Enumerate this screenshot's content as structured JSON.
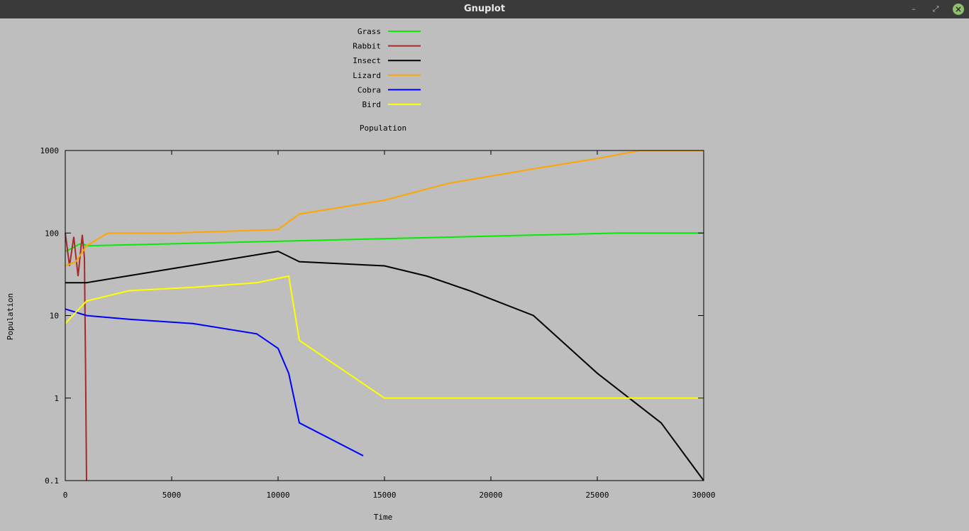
{
  "window": {
    "title": "Gnuplot",
    "minimize_icon": "minimize-icon",
    "maximize_icon": "restore-icon",
    "close_icon": "close-icon",
    "minimize_glyph": "–",
    "maximize_glyph": "⤢",
    "close_glyph": "×"
  },
  "chart_data": {
    "type": "line",
    "title": "Population",
    "xlabel": "Time",
    "ylabel": "Population",
    "xlim": [
      0,
      30000
    ],
    "ylim": [
      0.1,
      1000
    ],
    "yscale": "log",
    "grid": false,
    "legend_position": "top-center",
    "xticks": [
      0,
      5000,
      10000,
      15000,
      20000,
      25000,
      30000
    ],
    "xtick_labels": [
      "0",
      "5000",
      "10000",
      "15000",
      "20000",
      "25000",
      "30000"
    ],
    "yticks": [
      0.1,
      1,
      10,
      100,
      1000
    ],
    "ytick_labels": [
      "0.1",
      "1",
      "10",
      "100",
      "1000"
    ],
    "series": [
      {
        "name": "Grass",
        "color": "#00ee00",
        "x": [
          0,
          300,
          600,
          800,
          1000,
          26000,
          30000
        ],
        "y": [
          60,
          65,
          72,
          75,
          70,
          100,
          100
        ]
      },
      {
        "name": "Rabbit",
        "color": "#a52a2a",
        "x": [
          0,
          200,
          400,
          600,
          800,
          900,
          950,
          1000
        ],
        "y": [
          100,
          40,
          90,
          30,
          95,
          50,
          3,
          0.1
        ]
      },
      {
        "name": "Insect",
        "color": "#000000",
        "x": [
          0,
          1000,
          10000,
          11000,
          15000,
          17000,
          19000,
          22000,
          25000,
          28000,
          30000
        ],
        "y": [
          25,
          25,
          60,
          45,
          40,
          30,
          20,
          10,
          2,
          0.5,
          0.1
        ]
      },
      {
        "name": "Lizard",
        "color": "#ffa500",
        "x": [
          0,
          500,
          1000,
          2000,
          5000,
          10000,
          11000,
          15000,
          18000,
          22000,
          25000,
          27000,
          30000
        ],
        "y": [
          40,
          45,
          70,
          100,
          100,
          110,
          170,
          250,
          400,
          600,
          800,
          1000,
          1000
        ]
      },
      {
        "name": "Cobra",
        "color": "#0000ff",
        "x": [
          0,
          1000,
          3000,
          6000,
          9000,
          10000,
          10500,
          11000,
          14000
        ],
        "y": [
          12,
          10,
          9,
          8,
          6,
          4,
          2,
          0.5,
          0.2
        ]
      },
      {
        "name": "Bird",
        "color": "#ffff00",
        "x": [
          0,
          1000,
          3000,
          6000,
          9000,
          10500,
          11000,
          15000,
          20000,
          26000,
          30000
        ],
        "y": [
          8,
          15,
          20,
          22,
          25,
          30,
          5,
          1,
          1,
          1,
          1
        ]
      }
    ]
  }
}
